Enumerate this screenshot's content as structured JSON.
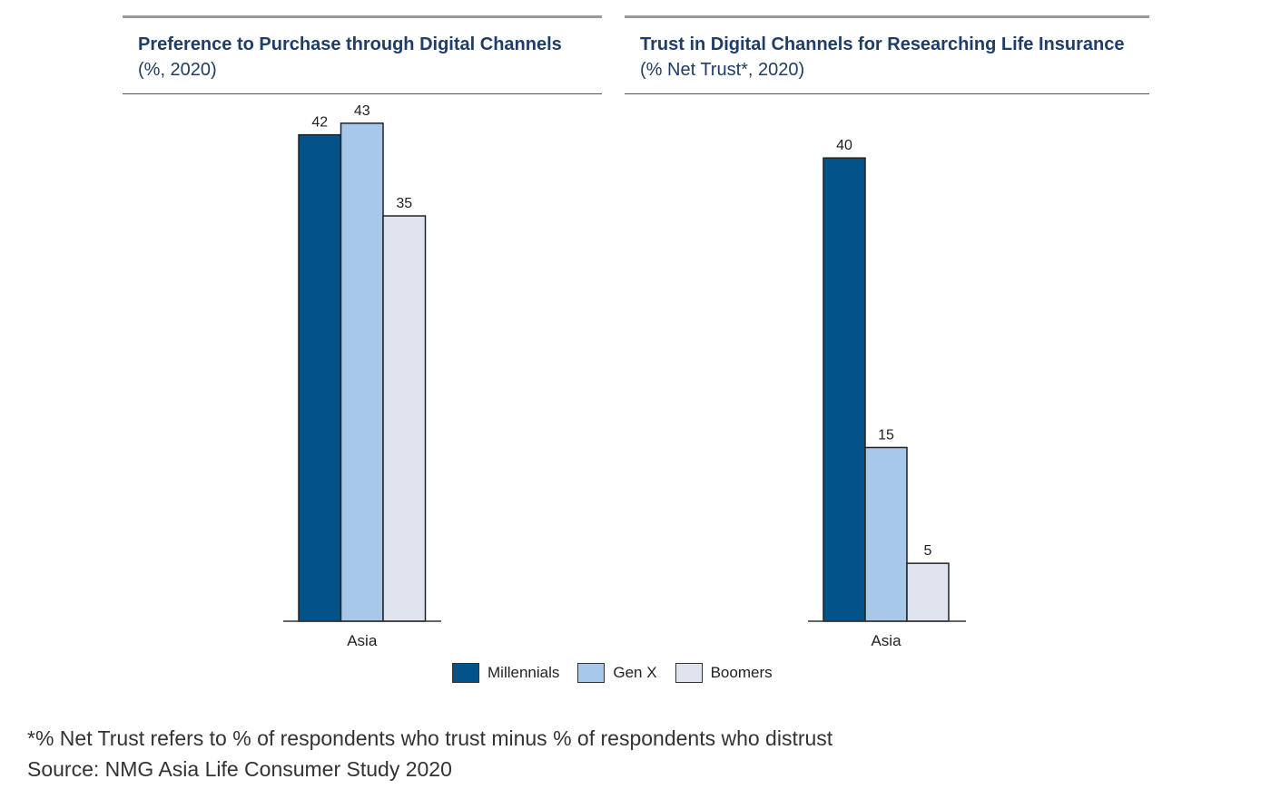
{
  "chart_data": [
    {
      "type": "bar",
      "title": "Preference to Purchase through Digital Channels",
      "subtitle": "(%, 2020)",
      "categories": [
        "Asia"
      ],
      "series": [
        {
          "name": "Millennials",
          "values": [
            42
          ]
        },
        {
          "name": "Gen X",
          "values": [
            43
          ]
        },
        {
          "name": "Boomers",
          "values": [
            35
          ]
        }
      ],
      "ylim": [
        0,
        45
      ],
      "grid": false,
      "legend": "bottom"
    },
    {
      "type": "bar",
      "title": "Trust in Digital Channels for Researching Life Insurance",
      "subtitle": "(% Net Trust*, 2020)",
      "categories": [
        "Asia"
      ],
      "series": [
        {
          "name": "Millennials",
          "values": [
            40
          ]
        },
        {
          "name": "Gen X",
          "values": [
            15
          ]
        },
        {
          "name": "Boomers",
          "values": [
            5
          ]
        }
      ],
      "ylim": [
        0,
        45
      ],
      "grid": false,
      "legend": "bottom"
    }
  ],
  "legend": {
    "items": [
      {
        "label": "Millennials",
        "color": "#03528a"
      },
      {
        "label": "Gen X",
        "color": "#a7c8e8"
      },
      {
        "label": "Boomers",
        "color": "#dfe4ef"
      }
    ]
  },
  "footnote": {
    "note": "*% Net Trust refers to % of respondents who trust minus % of respondents who distrust",
    "source": "Source: NMG Asia Life Consumer Study 2020"
  },
  "colors": {
    "title": "#1f3d66",
    "millennials": "#03528a",
    "genx": "#a7c8e8",
    "boomers": "#dfe4ef"
  }
}
